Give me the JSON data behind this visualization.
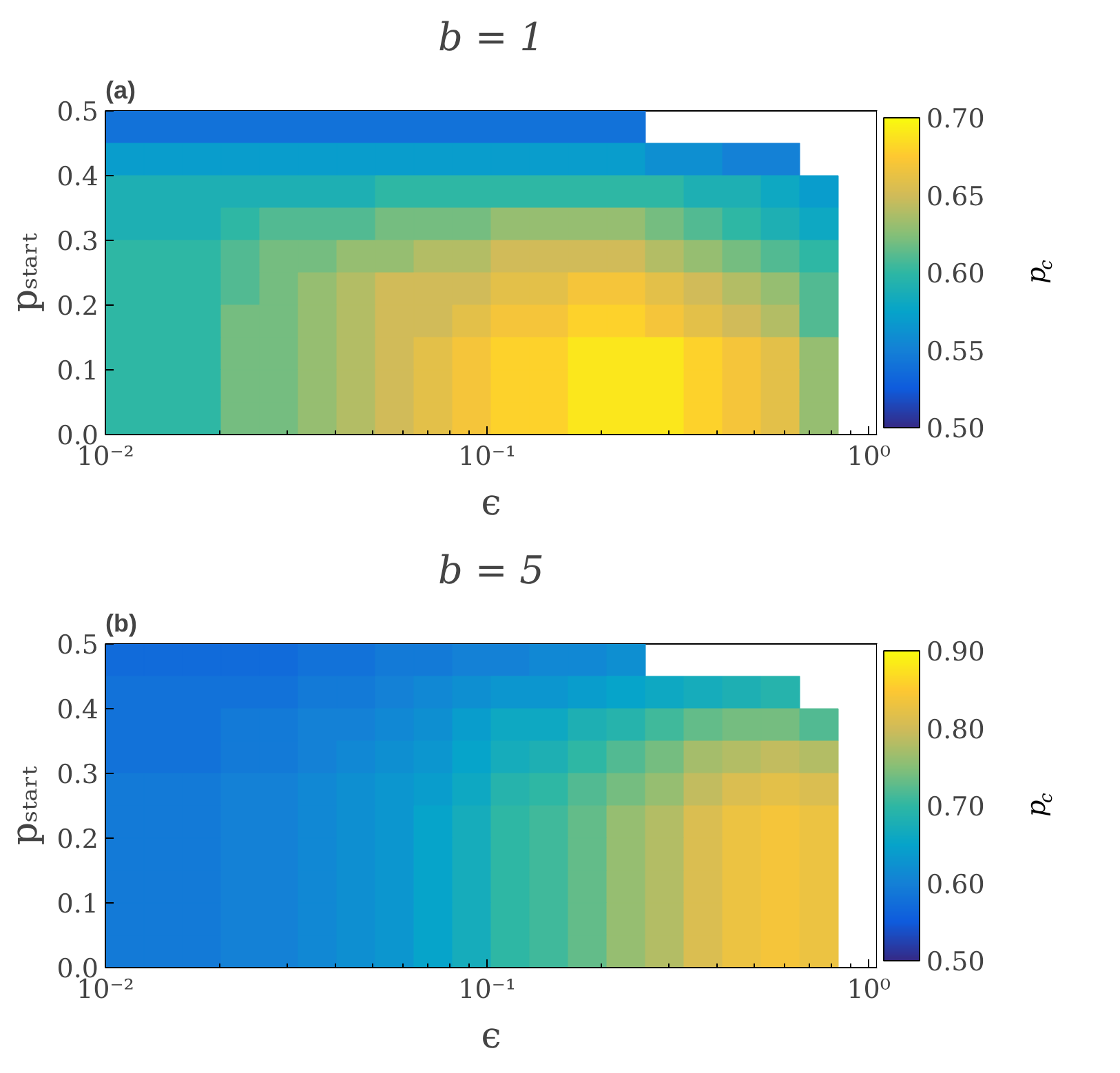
{
  "chart_data": [
    {
      "type": "heatmap",
      "title": "b = 1",
      "xlabel": "ϵ",
      "ylabel": "pₛₜₐᵣₜ",
      "clabel": "p$_{c}$",
      "annotations": [
        "(a)"
      ],
      "log": "x",
      "grid": false,
      "xlim": [
        0.01,
        1.05
      ],
      "ylim": [
        0,
        0.5
      ],
      "xticks": [
        {
          "value": 0.01,
          "label": "10⁻²"
        },
        {
          "value": 0.1,
          "label": "10⁻¹"
        },
        {
          "value": 1,
          "label": "10⁰"
        }
      ],
      "yticks": [
        {
          "value": 0,
          "label": "0.0"
        },
        0.1,
        0.2,
        0.3,
        0.4,
        0.5
      ],
      "clim": [
        0.5,
        0.7
      ],
      "cticks": [
        {
          "value": 0.5,
          "label": "0.50"
        },
        0.55,
        {
          "value": 0.6,
          "label": "0.60"
        },
        0.65,
        {
          "value": 0.7,
          "label": "0.70"
        }
      ],
      "cells": [
        [
          0.54,
          0.54,
          0.54,
          0.54,
          0.54,
          0.54,
          0.54,
          0.54,
          0.54,
          0.54,
          0.54,
          0.54,
          0.54,
          0.54,
          null,
          null,
          null,
          null,
          null,
          null
        ],
        [
          0.57,
          0.57,
          0.57,
          0.57,
          0.57,
          0.57,
          0.57,
          0.57,
          0.57,
          0.57,
          0.57,
          0.57,
          0.57,
          0.57,
          0.56,
          0.56,
          0.55,
          0.55,
          null,
          null
        ],
        [
          0.59,
          0.59,
          0.59,
          0.59,
          0.59,
          0.59,
          0.59,
          0.6,
          0.6,
          0.6,
          0.6,
          0.6,
          0.6,
          0.6,
          0.6,
          0.59,
          0.59,
          0.58,
          0.57,
          null
        ],
        [
          0.59,
          0.59,
          0.59,
          0.6,
          0.61,
          0.61,
          0.61,
          0.62,
          0.62,
          0.62,
          0.63,
          0.63,
          0.63,
          0.63,
          0.62,
          0.61,
          0.6,
          0.59,
          0.58,
          null
        ],
        [
          0.6,
          0.6,
          0.6,
          0.61,
          0.62,
          0.62,
          0.63,
          0.63,
          0.64,
          0.64,
          0.65,
          0.65,
          0.65,
          0.65,
          0.64,
          0.63,
          0.62,
          0.61,
          0.6,
          null
        ],
        [
          0.6,
          0.6,
          0.6,
          0.61,
          0.62,
          0.63,
          0.64,
          0.65,
          0.65,
          0.65,
          0.66,
          0.66,
          0.67,
          0.67,
          0.66,
          0.65,
          0.64,
          0.63,
          0.61,
          null
        ],
        [
          0.6,
          0.6,
          0.6,
          0.62,
          0.62,
          0.63,
          0.64,
          0.65,
          0.65,
          0.66,
          0.67,
          0.67,
          0.68,
          0.68,
          0.67,
          0.66,
          0.65,
          0.64,
          0.61,
          null
        ],
        [
          0.6,
          0.6,
          0.6,
          0.62,
          0.62,
          0.63,
          0.64,
          0.65,
          0.66,
          0.67,
          0.68,
          0.68,
          0.69,
          0.69,
          0.69,
          0.68,
          0.67,
          0.66,
          0.63,
          null
        ],
        [
          0.6,
          0.6,
          0.6,
          0.62,
          0.62,
          0.63,
          0.64,
          0.65,
          0.66,
          0.67,
          0.68,
          0.68,
          0.69,
          0.69,
          0.69,
          0.68,
          0.67,
          0.66,
          0.63,
          null
        ],
        [
          0.6,
          0.6,
          0.6,
          0.62,
          0.62,
          0.63,
          0.64,
          0.65,
          0.66,
          0.67,
          0.68,
          0.68,
          0.69,
          0.69,
          0.69,
          0.68,
          0.67,
          0.66,
          0.63,
          null
        ]
      ]
    },
    {
      "type": "heatmap",
      "title": "b = 5",
      "xlabel": "ϵ",
      "ylabel": "pₛₜₐᵣₜ",
      "clabel": "p$_{c}$",
      "annotations": [
        "(b)"
      ],
      "log": "x",
      "grid": false,
      "xlim": [
        0.01,
        1.05
      ],
      "ylim": [
        0,
        0.5
      ],
      "xticks": [
        {
          "value": 0.01,
          "label": "10⁻²"
        },
        {
          "value": 0.1,
          "label": "10⁻¹"
        },
        {
          "value": 1,
          "label": "10⁰"
        }
      ],
      "yticks": [
        {
          "value": 0,
          "label": "0.0"
        },
        0.1,
        0.2,
        0.3,
        0.4,
        0.5
      ],
      "clim": [
        0.5,
        0.9
      ],
      "cticks": [
        {
          "value": 0.5,
          "label": "0.50"
        },
        {
          "value": 0.6,
          "label": "0.60"
        },
        {
          "value": 0.7,
          "label": "0.70"
        },
        {
          "value": 0.8,
          "label": "0.80"
        },
        {
          "value": 0.9,
          "label": "0.90"
        }
      ],
      "cells": [
        [
          0.57,
          0.57,
          0.57,
          0.57,
          0.57,
          0.58,
          0.58,
          0.59,
          0.59,
          0.6,
          0.6,
          0.61,
          0.61,
          0.62,
          null,
          null,
          null,
          null,
          null,
          null
        ],
        [
          0.58,
          0.58,
          0.58,
          0.58,
          0.58,
          0.59,
          0.59,
          0.6,
          0.61,
          0.62,
          0.63,
          0.63,
          0.64,
          0.65,
          0.66,
          0.67,
          0.68,
          0.69,
          null,
          null
        ],
        [
          0.58,
          0.58,
          0.58,
          0.59,
          0.59,
          0.6,
          0.6,
          0.61,
          0.62,
          0.64,
          0.66,
          0.66,
          0.68,
          0.69,
          0.71,
          0.73,
          0.74,
          0.74,
          0.72,
          null
        ],
        [
          0.58,
          0.58,
          0.58,
          0.59,
          0.59,
          0.6,
          0.61,
          0.62,
          0.63,
          0.65,
          0.67,
          0.68,
          0.7,
          0.72,
          0.74,
          0.77,
          0.78,
          0.79,
          0.78,
          null
        ],
        [
          0.59,
          0.59,
          0.59,
          0.6,
          0.6,
          0.61,
          0.62,
          0.63,
          0.64,
          0.66,
          0.69,
          0.7,
          0.72,
          0.74,
          0.76,
          0.79,
          0.81,
          0.82,
          0.81,
          null
        ],
        [
          0.59,
          0.59,
          0.59,
          0.6,
          0.6,
          0.61,
          0.62,
          0.63,
          0.65,
          0.67,
          0.7,
          0.71,
          0.73,
          0.76,
          0.78,
          0.81,
          0.83,
          0.84,
          0.83,
          null
        ],
        [
          0.59,
          0.59,
          0.59,
          0.6,
          0.6,
          0.61,
          0.62,
          0.63,
          0.65,
          0.67,
          0.7,
          0.71,
          0.73,
          0.76,
          0.78,
          0.81,
          0.83,
          0.84,
          0.83,
          null
        ],
        [
          0.59,
          0.59,
          0.59,
          0.6,
          0.6,
          0.61,
          0.62,
          0.63,
          0.65,
          0.67,
          0.7,
          0.71,
          0.73,
          0.76,
          0.78,
          0.81,
          0.83,
          0.84,
          0.83,
          null
        ],
        [
          0.59,
          0.59,
          0.59,
          0.6,
          0.6,
          0.61,
          0.62,
          0.63,
          0.65,
          0.67,
          0.7,
          0.71,
          0.73,
          0.76,
          0.78,
          0.81,
          0.83,
          0.84,
          0.83,
          null
        ],
        [
          0.59,
          0.59,
          0.59,
          0.6,
          0.6,
          0.61,
          0.62,
          0.63,
          0.65,
          0.67,
          0.7,
          0.71,
          0.73,
          0.76,
          0.78,
          0.81,
          0.83,
          0.84,
          0.83,
          null
        ]
      ]
    }
  ]
}
